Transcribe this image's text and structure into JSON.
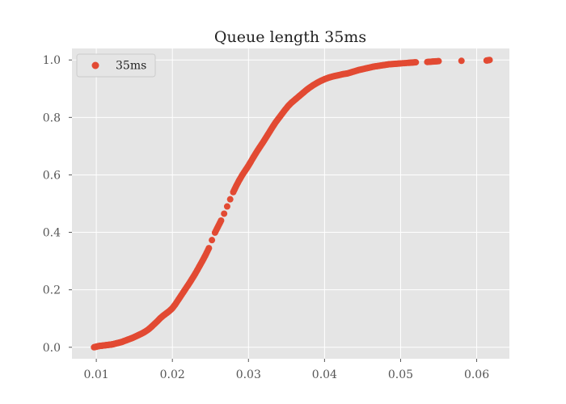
{
  "chart_data": {
    "type": "scatter",
    "title": "Queue length 35ms",
    "xlabel": "",
    "ylabel": "",
    "xlim": [
      0.0068,
      0.0643
    ],
    "ylim": [
      -0.04,
      1.04
    ],
    "x_ticks": [
      0.01,
      0.02,
      0.03,
      0.04,
      0.05,
      0.06
    ],
    "x_tick_labels": [
      "0.01",
      "0.02",
      "0.03",
      "0.04",
      "0.05",
      "0.06"
    ],
    "y_ticks": [
      0.0,
      0.2,
      0.4,
      0.6,
      0.8,
      1.0
    ],
    "y_tick_labels": [
      "0.0",
      "0.2",
      "0.4",
      "0.6",
      "0.8",
      "1.0"
    ],
    "grid": true,
    "legend_position": "top-left",
    "colors": {
      "series": "#E24A33",
      "plot_background": "#E5E5E5",
      "grid": "#FFFFFF"
    },
    "series": [
      {
        "name": "35ms",
        "x": [
          0.0097,
          0.01,
          0.0103,
          0.0106,
          0.0109,
          0.0112,
          0.0115,
          0.0118,
          0.0121,
          0.0124,
          0.0127,
          0.013,
          0.0133,
          0.0136,
          0.014,
          0.0144,
          0.0148,
          0.0152,
          0.0156,
          0.016,
          0.0164,
          0.0168,
          0.0172,
          0.0176,
          0.018,
          0.0184,
          0.0188,
          0.0192,
          0.0196,
          0.02,
          0.0204,
          0.0208,
          0.0212,
          0.0216,
          0.022,
          0.0224,
          0.0228,
          0.0232,
          0.0236,
          0.024,
          0.0244,
          0.0248,
          0.0252,
          0.0256,
          0.026,
          0.0264,
          0.0268,
          0.0272,
          0.0276,
          0.028,
          0.0284,
          0.0288,
          0.0292,
          0.0296,
          0.03,
          0.0304,
          0.0308,
          0.0312,
          0.0316,
          0.032,
          0.0324,
          0.0328,
          0.0332,
          0.0336,
          0.034,
          0.0344,
          0.0348,
          0.0352,
          0.0356,
          0.036,
          0.0364,
          0.0368,
          0.0372,
          0.0376,
          0.038,
          0.0385,
          0.039,
          0.0395,
          0.04,
          0.0405,
          0.041,
          0.0415,
          0.042,
          0.0425,
          0.043,
          0.0435,
          0.044,
          0.0445,
          0.045,
          0.0455,
          0.046,
          0.0465,
          0.047,
          0.0475,
          0.048,
          0.0485,
          0.049,
          0.0495,
          0.05,
          0.051,
          0.0515,
          0.052,
          0.0535,
          0.054,
          0.0545,
          0.055,
          0.058,
          0.0613,
          0.0617
        ],
        "y": [
          0.0,
          0.002,
          0.004,
          0.005,
          0.006,
          0.007,
          0.008,
          0.009,
          0.01,
          0.012,
          0.014,
          0.016,
          0.018,
          0.021,
          0.025,
          0.029,
          0.033,
          0.038,
          0.043,
          0.048,
          0.054,
          0.061,
          0.07,
          0.08,
          0.09,
          0.101,
          0.11,
          0.118,
          0.126,
          0.136,
          0.15,
          0.166,
          0.182,
          0.198,
          0.214,
          0.23,
          0.247,
          0.265,
          0.284,
          0.303,
          0.323,
          0.345,
          0.373,
          0.399,
          0.42,
          0.441,
          0.465,
          0.49,
          0.515,
          0.54,
          0.562,
          0.582,
          0.6,
          0.616,
          0.632,
          0.65,
          0.668,
          0.685,
          0.701,
          0.717,
          0.734,
          0.751,
          0.768,
          0.784,
          0.798,
          0.812,
          0.826,
          0.839,
          0.85,
          0.859,
          0.868,
          0.877,
          0.886,
          0.895,
          0.903,
          0.912,
          0.92,
          0.927,
          0.933,
          0.938,
          0.942,
          0.945,
          0.948,
          0.951,
          0.953,
          0.957,
          0.961,
          0.965,
          0.968,
          0.971,
          0.974,
          0.977,
          0.979,
          0.981,
          0.983,
          0.985,
          0.986,
          0.987,
          0.988,
          0.99,
          0.991,
          0.992,
          0.993,
          0.994,
          0.995,
          0.996,
          0.997,
          0.998,
          1.0
        ]
      }
    ]
  }
}
